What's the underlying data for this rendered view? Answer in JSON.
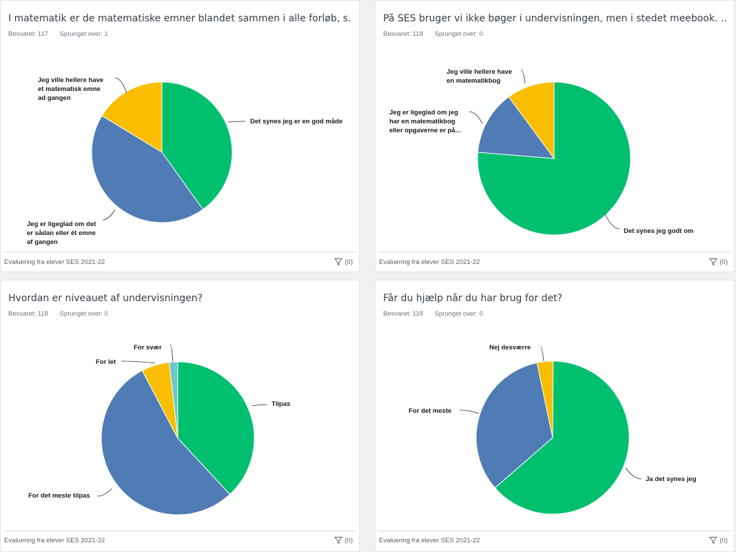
{
  "colors": {
    "green": "#00bf6f",
    "blue": "#507cb6",
    "yellow": "#f9be00",
    "teal": "#6bc8cd"
  },
  "footer_label": "Evaluering fra elever SES 2021-22",
  "filter_label": "(0)",
  "cards": [
    {
      "title": "I matematik er de matematiske emner blandet sammen i alle forløb, s...",
      "answered": "Besvaret: 117",
      "skipped": "Sprunget over: 1"
    },
    {
      "title": "På SES bruger vi ikke bøger i undervisningen, men i stedet meebook. ...",
      "answered": "Besvaret: 118",
      "skipped": "Sprunget over: 0"
    },
    {
      "title": "Hvordan er niveauet af undervisningen?",
      "answered": "Besvaret: 118",
      "skipped": "Sprunget over: 0"
    },
    {
      "title": "Får du hjælp når du har brug for det?",
      "answered": "Besvaret: 118",
      "skipped": "Sprunget over: 0"
    }
  ],
  "chart_data": [
    {
      "type": "pie",
      "slices": [
        {
          "label": [
            "Det synes jeg er en god måde"
          ],
          "percent": 40.1,
          "color": "green"
        },
        {
          "label": [
            "Jeg er ligeglad om det",
            "er sådan eller ét emne",
            "af gangen"
          ],
          "percent": 43.6,
          "color": "blue"
        },
        {
          "label": [
            "Jeg ville hellere have",
            "et matematisk emne",
            "ad gangen"
          ],
          "percent": 16.3,
          "color": "yellow"
        }
      ]
    },
    {
      "type": "pie",
      "slices": [
        {
          "label": [
            "Det synes jeg godt om"
          ],
          "percent": 76.3,
          "color": "green"
        },
        {
          "label": [
            "Jeg er ligeglad om jeg",
            "har en matematikbog",
            "eller opgaverne er på..."
          ],
          "percent": 13.6,
          "color": "blue"
        },
        {
          "label": [
            "Jeg ville hellere have",
            "en matematikbog"
          ],
          "percent": 10.1,
          "color": "yellow"
        }
      ]
    },
    {
      "type": "pie",
      "slices": [
        {
          "label": [
            "Tilpas"
          ],
          "percent": 38.1,
          "color": "green"
        },
        {
          "label": [
            "For det meste tilpas"
          ],
          "percent": 54.2,
          "color": "blue"
        },
        {
          "label": [
            "For let"
          ],
          "percent": 5.9,
          "color": "yellow"
        },
        {
          "label": [
            "For svær"
          ],
          "percent": 1.8,
          "color": "teal"
        }
      ]
    },
    {
      "type": "pie",
      "slices": [
        {
          "label": [
            "Ja det synes jeg"
          ],
          "percent": 63.6,
          "color": "green"
        },
        {
          "label": [
            "For det meste"
          ],
          "percent": 33.1,
          "color": "blue"
        },
        {
          "label": [
            "Nej desværre"
          ],
          "percent": 3.4,
          "color": "yellow"
        }
      ]
    }
  ]
}
